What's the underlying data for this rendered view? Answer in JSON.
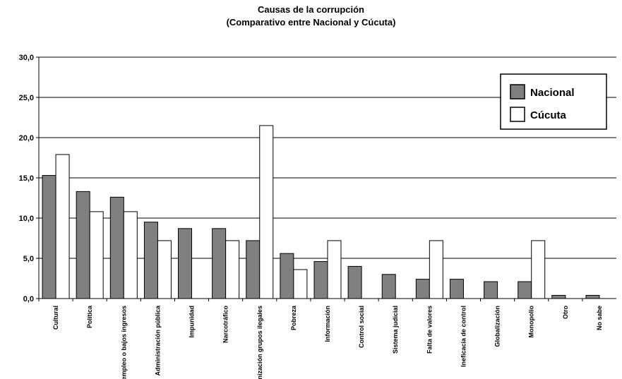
{
  "chart_data": {
    "type": "bar",
    "title": "Causas de la corrupción",
    "subtitle": "(Comparativo entre Nacional y Cúcuta)",
    "ylim": [
      0,
      30
    ],
    "yticks": [
      "0,0",
      "5,0",
      "10,0",
      "15,0",
      "20,0",
      "25,0",
      "30,0"
    ],
    "grid": true,
    "legend_position": "top-right",
    "categories": [
      "Cultural",
      "Política",
      "Desempleo o bajos ingresos",
      "Administración pública",
      "Impunidad",
      "Narcotráfico",
      "Organización grupos ilegales",
      "Pobreza",
      "Información",
      "Control social",
      "Sistema judicial",
      "Falta de valores",
      "Ineficacia de control",
      "Globalización",
      "Monopolio",
      "Otro",
      "No sabe"
    ],
    "series": [
      {
        "name": "Nacional",
        "color": "#808080",
        "values": [
          15.3,
          13.3,
          12.6,
          9.5,
          8.7,
          8.7,
          7.2,
          5.6,
          4.6,
          4.0,
          3.0,
          2.4,
          2.4,
          2.1,
          2.1,
          0.4,
          0.4
        ]
      },
      {
        "name": "Cúcuta",
        "color": "#ffffff",
        "values": [
          17.9,
          10.8,
          10.8,
          7.2,
          0,
          7.2,
          21.5,
          3.6,
          7.2,
          0,
          0,
          7.2,
          0,
          0,
          7.2,
          0,
          0
        ]
      }
    ]
  }
}
